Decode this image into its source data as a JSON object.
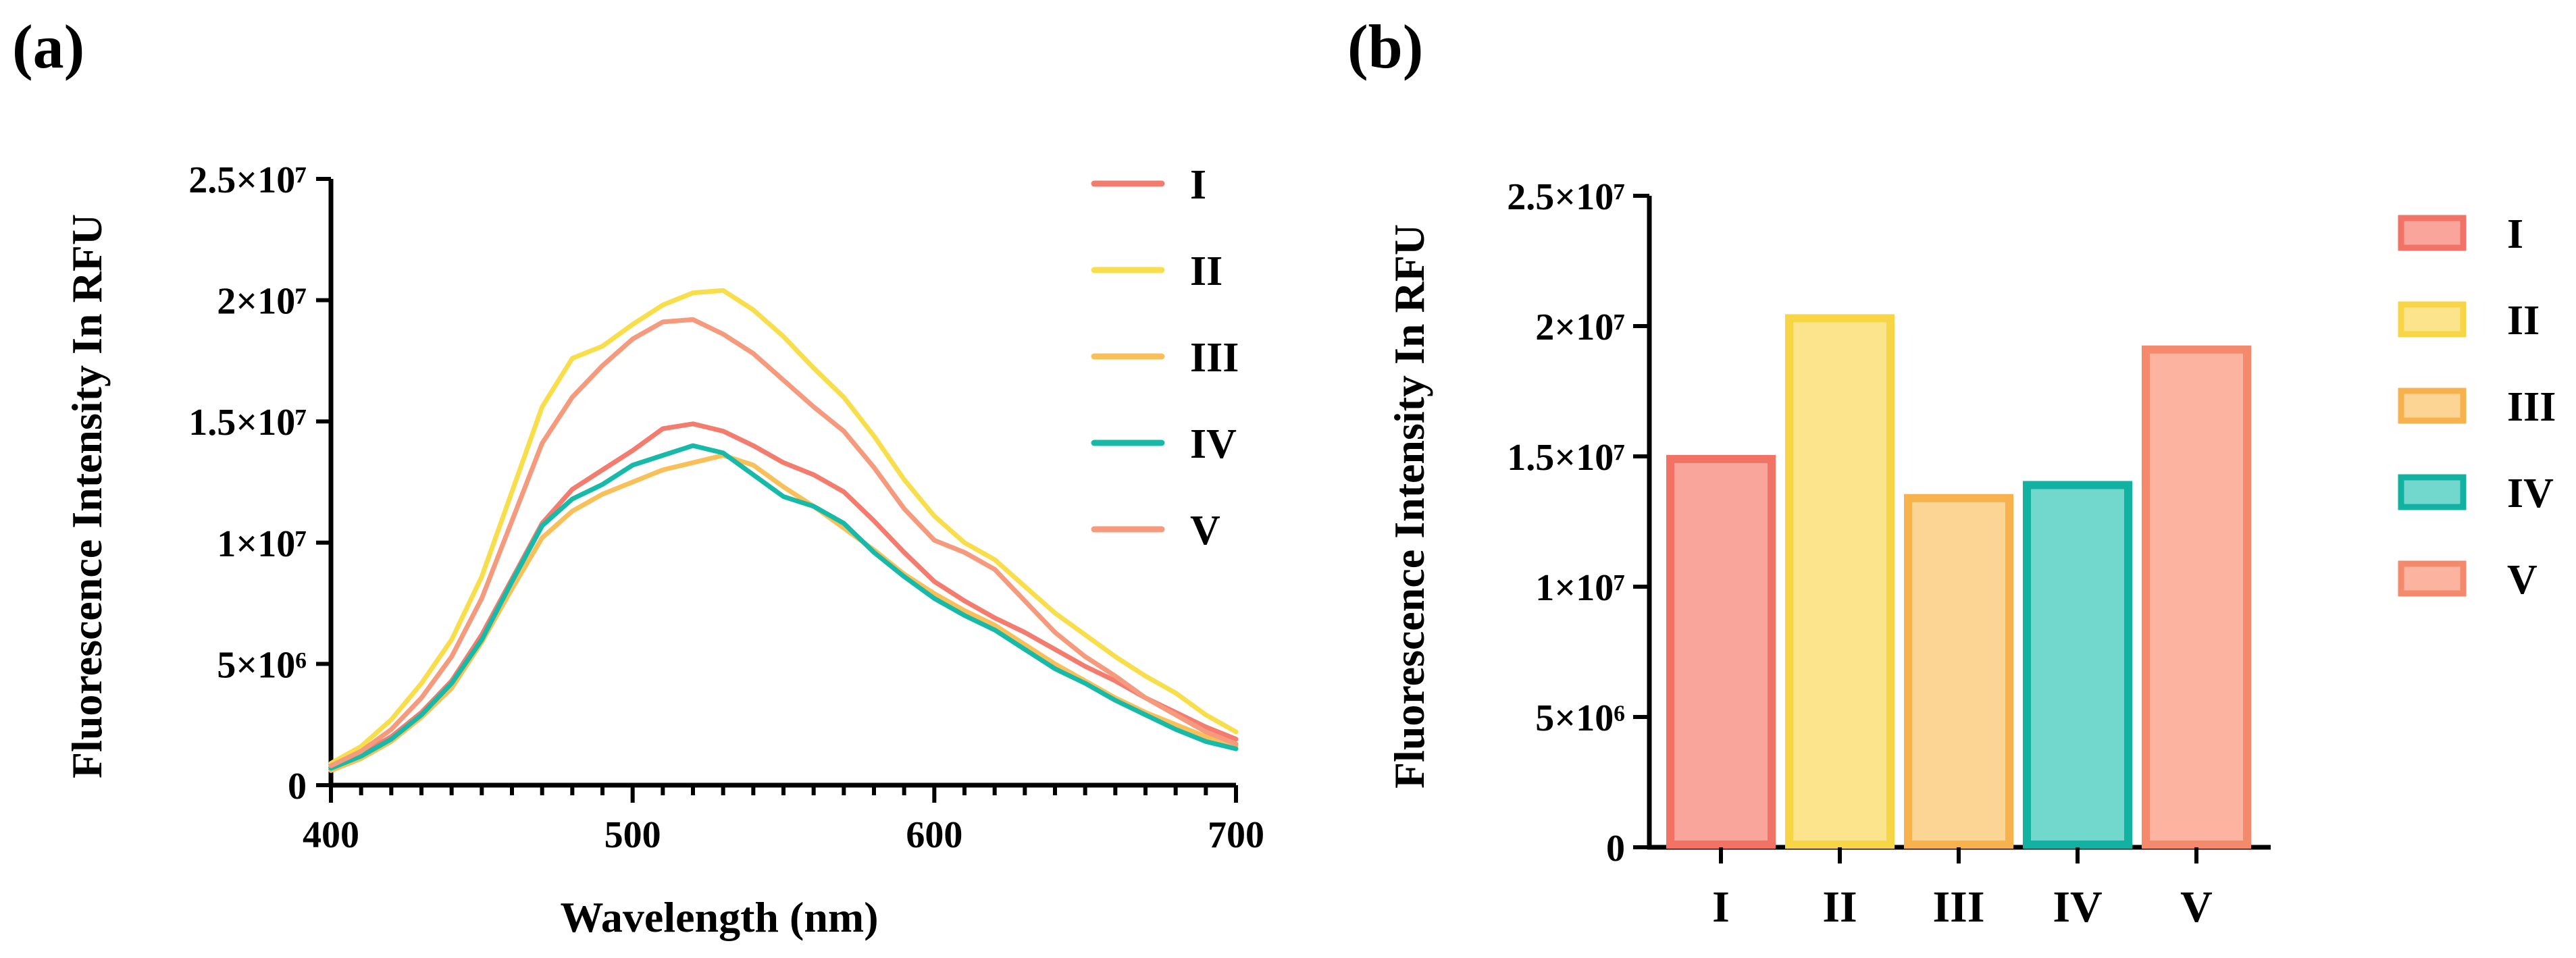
{
  "chart_data": [
    {
      "type": "line",
      "panel_label": "(a)",
      "xlabel": "Wavelength (nm)",
      "ylabel": "Fluorescence Intensity In RFU",
      "xlim": [
        400,
        700
      ],
      "ylim": [
        0,
        25000000
      ],
      "x_ticks": [
        400,
        500,
        600,
        700
      ],
      "y_ticks": [
        {
          "value": 0,
          "label": "0"
        },
        {
          "value": 5000000,
          "label": "5×10⁶"
        },
        {
          "value": 10000000,
          "label": "1×10⁷"
        },
        {
          "value": 15000000,
          "label": "1.5×10⁷"
        },
        {
          "value": 20000000,
          "label": "2×10⁷"
        },
        {
          "value": 25000000,
          "label": "2.5×10⁷"
        }
      ],
      "legend_position": "right",
      "x": [
        400,
        410,
        420,
        430,
        440,
        450,
        460,
        470,
        480,
        490,
        500,
        510,
        520,
        530,
        540,
        550,
        560,
        570,
        580,
        590,
        600,
        610,
        620,
        630,
        640,
        650,
        660,
        670,
        680,
        690,
        700
      ],
      "series": [
        {
          "name": "I",
          "color": "#F47C6E",
          "values": [
            0.8,
            1.3,
            2.0,
            3.0,
            4.3,
            6.2,
            8.5,
            10.8,
            12.2,
            13.0,
            13.8,
            14.7,
            14.9,
            14.6,
            14.0,
            13.3,
            12.8,
            12.1,
            10.9,
            9.6,
            8.4,
            7.6,
            6.9,
            6.3,
            5.6,
            4.9,
            4.3,
            3.6,
            3.0,
            2.4,
            1.9
          ]
        },
        {
          "name": "II",
          "color": "#F7DE4A",
          "values": [
            0.9,
            1.6,
            2.7,
            4.2,
            6.0,
            8.6,
            12.1,
            15.6,
            17.6,
            18.1,
            19.0,
            19.8,
            20.3,
            20.4,
            19.6,
            18.5,
            17.2,
            16.0,
            14.4,
            12.6,
            11.1,
            10.0,
            9.3,
            8.2,
            7.1,
            6.2,
            5.3,
            4.5,
            3.8,
            2.9,
            2.2
          ]
        },
        {
          "name": "III",
          "color": "#F9C05A",
          "values": [
            0.6,
            1.1,
            1.8,
            2.8,
            4.0,
            5.9,
            8.1,
            10.2,
            11.3,
            12.0,
            12.5,
            13.0,
            13.3,
            13.6,
            13.2,
            12.3,
            11.5,
            10.6,
            9.7,
            8.7,
            7.9,
            7.2,
            6.6,
            5.8,
            5.0,
            4.3,
            3.6,
            3.0,
            2.5,
            2.0,
            1.6
          ]
        },
        {
          "name": "IV",
          "color": "#17B9A9",
          "values": [
            0.7,
            1.2,
            1.9,
            2.9,
            4.2,
            6.0,
            8.4,
            10.7,
            11.8,
            12.4,
            13.2,
            13.6,
            14.0,
            13.7,
            12.8,
            11.9,
            11.5,
            10.8,
            9.6,
            8.6,
            7.7,
            7.0,
            6.4,
            5.6,
            4.8,
            4.2,
            3.5,
            2.9,
            2.3,
            1.8,
            1.5
          ]
        },
        {
          "name": "V",
          "color": "#F59A7C",
          "values": [
            0.8,
            1.4,
            2.3,
            3.6,
            5.3,
            7.7,
            10.9,
            14.1,
            16.0,
            17.3,
            18.4,
            19.1,
            19.2,
            18.6,
            17.8,
            16.7,
            15.6,
            14.6,
            13.1,
            11.4,
            10.1,
            9.6,
            8.9,
            7.6,
            6.3,
            5.3,
            4.5,
            3.6,
            2.9,
            2.2,
            1.7
          ]
        }
      ],
      "value_unit_multiplier": 1000000
    },
    {
      "type": "bar",
      "panel_label": "(b)",
      "xlabel": "",
      "ylabel": "Fluorescence Intensity In RFU",
      "ylim": [
        0,
        25000000
      ],
      "y_ticks": [
        {
          "value": 0,
          "label": "0"
        },
        {
          "value": 5000000,
          "label": "5×10⁶"
        },
        {
          "value": 10000000,
          "label": "1×10⁷"
        },
        {
          "value": 15000000,
          "label": "1.5×10⁷"
        },
        {
          "value": 20000000,
          "label": "2×10⁷"
        },
        {
          "value": 25000000,
          "label": "2.5×10⁷"
        }
      ],
      "legend_position": "right",
      "categories": [
        "I",
        "II",
        "III",
        "IV",
        "V"
      ],
      "values": [
        14900000,
        20300000,
        13400000,
        13900000,
        19100000
      ],
      "colors": [
        {
          "fill": "#F9A59B",
          "stroke": "#F27266"
        },
        {
          "fill": "#FCE48C",
          "stroke": "#F8D545"
        },
        {
          "fill": "#FCD494",
          "stroke": "#F7B24D"
        },
        {
          "fill": "#72D8CE",
          "stroke": "#12B2A3"
        },
        {
          "fill": "#FCB4A0",
          "stroke": "#F5896C"
        }
      ]
    }
  ]
}
